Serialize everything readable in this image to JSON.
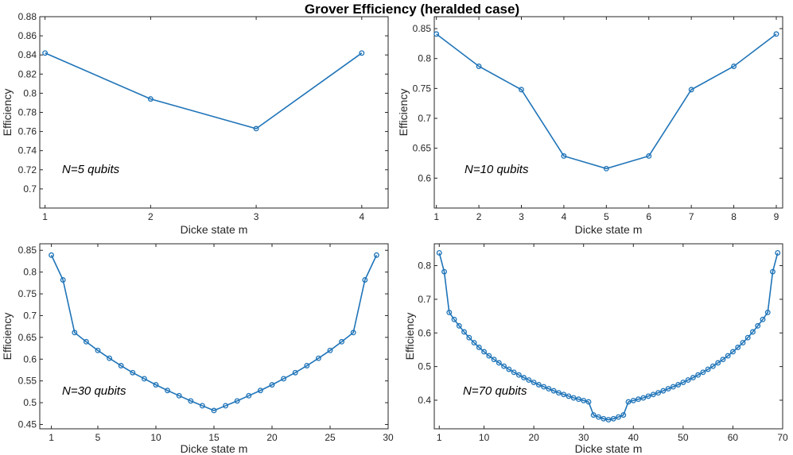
{
  "title": "Grover Efficiency (heralded case)",
  "colors": {
    "line": "#1f74b8",
    "axis": "#262626"
  },
  "chart_data": [
    {
      "type": "line",
      "annotation": "N=5 qubits",
      "xlabel": "Dicke state m",
      "ylabel": "Efficiency",
      "xlim": [
        0.95,
        4.25
      ],
      "ylim": [
        0.68,
        0.88
      ],
      "xticks": [
        1,
        2,
        3,
        4
      ],
      "yticks": [
        0.7,
        0.72,
        0.74,
        0.76,
        0.78,
        0.8,
        0.82,
        0.84,
        0.86,
        0.88
      ],
      "x": [
        1,
        2,
        3,
        4
      ],
      "y": [
        0.842,
        0.794,
        0.763,
        0.842
      ]
    },
    {
      "type": "line",
      "annotation": "N=10 qubits",
      "xlabel": "Dicke state m",
      "ylabel": "Efficiency",
      "xlim": [
        0.95,
        9.15
      ],
      "ylim": [
        0.55,
        0.87
      ],
      "xticks": [
        1,
        2,
        3,
        4,
        5,
        6,
        7,
        8,
        9
      ],
      "yticks": [
        0.6,
        0.65,
        0.7,
        0.75,
        0.8,
        0.85
      ],
      "x": [
        1,
        2,
        3,
        4,
        5,
        6,
        7,
        8,
        9
      ],
      "y": [
        0.841,
        0.787,
        0.748,
        0.637,
        0.616,
        0.637,
        0.748,
        0.787,
        0.841
      ]
    },
    {
      "type": "line",
      "annotation": "N=30 qubits",
      "xlabel": "Dicke state m",
      "ylabel": "Efficiency",
      "xlim": [
        0,
        30
      ],
      "ylim": [
        0.44,
        0.865
      ],
      "xticks": [
        1,
        5,
        10,
        15,
        20,
        25,
        30
      ],
      "yticks": [
        0.45,
        0.5,
        0.55,
        0.6,
        0.65,
        0.7,
        0.75,
        0.8,
        0.85
      ],
      "x": [
        1,
        2,
        3,
        4,
        5,
        6,
        7,
        8,
        9,
        10,
        11,
        12,
        13,
        14,
        15,
        16,
        17,
        18,
        19,
        20,
        21,
        22,
        23,
        24,
        25,
        26,
        27,
        28,
        29
      ],
      "y": [
        0.839,
        0.782,
        0.661,
        0.64,
        0.62,
        0.602,
        0.585,
        0.569,
        0.555,
        0.541,
        0.528,
        0.516,
        0.504,
        0.493,
        0.482,
        0.493,
        0.504,
        0.516,
        0.528,
        0.541,
        0.555,
        0.569,
        0.585,
        0.602,
        0.62,
        0.64,
        0.661,
        0.782,
        0.839
      ]
    },
    {
      "type": "line",
      "annotation": "N=70 qubits",
      "xlabel": "Dicke state m",
      "ylabel": "Efficiency",
      "xlim": [
        0,
        70
      ],
      "ylim": [
        0.315,
        0.865
      ],
      "xticks": [
        1,
        10,
        20,
        30,
        40,
        50,
        60,
        70
      ],
      "yticks": [
        0.4,
        0.5,
        0.6,
        0.7,
        0.8
      ],
      "x": [
        1,
        2,
        3,
        4,
        5,
        6,
        7,
        8,
        9,
        10,
        11,
        12,
        13,
        14,
        15,
        16,
        17,
        18,
        19,
        20,
        21,
        22,
        23,
        24,
        25,
        26,
        27,
        28,
        29,
        30,
        31,
        32,
        33,
        34,
        35,
        36,
        37,
        38,
        39,
        40,
        41,
        42,
        43,
        44,
        45,
        46,
        47,
        48,
        49,
        50,
        51,
        52,
        53,
        54,
        55,
        56,
        57,
        58,
        59,
        60,
        61,
        62,
        63,
        64,
        65,
        66,
        67,
        68,
        69
      ],
      "y": [
        0.838,
        0.782,
        0.661,
        0.64,
        0.621,
        0.603,
        0.586,
        0.571,
        0.557,
        0.544,
        0.532,
        0.521,
        0.511,
        0.501,
        0.492,
        0.483,
        0.475,
        0.467,
        0.46,
        0.453,
        0.446,
        0.44,
        0.434,
        0.428,
        0.422,
        0.417,
        0.412,
        0.407,
        0.403,
        0.399,
        0.395,
        0.356,
        0.35,
        0.345,
        0.342,
        0.345,
        0.35,
        0.356,
        0.395,
        0.399,
        0.403,
        0.407,
        0.412,
        0.417,
        0.422,
        0.428,
        0.434,
        0.44,
        0.446,
        0.453,
        0.46,
        0.467,
        0.475,
        0.483,
        0.492,
        0.501,
        0.511,
        0.521,
        0.532,
        0.544,
        0.557,
        0.571,
        0.586,
        0.603,
        0.621,
        0.64,
        0.661,
        0.782,
        0.838
      ]
    }
  ]
}
